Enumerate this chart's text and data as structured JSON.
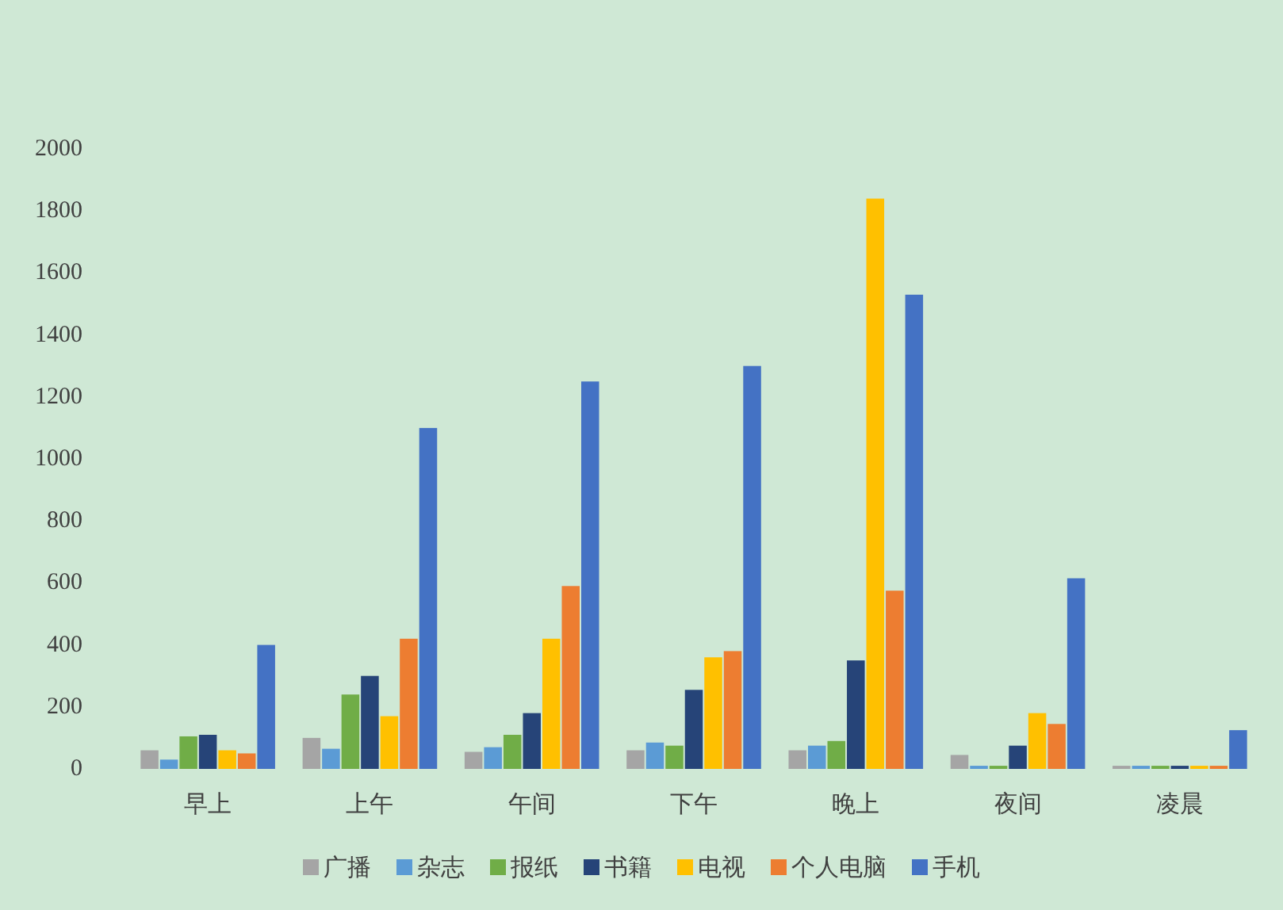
{
  "chart_data": {
    "type": "bar",
    "categories": [
      "早上",
      "上午",
      "午间",
      "下午",
      "晚上",
      "夜间",
      "凌晨"
    ],
    "series": [
      {
        "name": "广播",
        "color": "#a5a5a5",
        "values": [
          60,
          100,
          55,
          60,
          60,
          45,
          10
        ]
      },
      {
        "name": "杂志",
        "color": "#5b9bd5",
        "values": [
          30,
          65,
          70,
          85,
          75,
          10,
          10
        ]
      },
      {
        "name": "报纸",
        "color": "#70ad47",
        "values": [
          105,
          240,
          110,
          75,
          90,
          10,
          10
        ]
      },
      {
        "name": "书籍",
        "color": "#264478",
        "values": [
          110,
          300,
          180,
          255,
          350,
          75,
          10
        ]
      },
      {
        "name": "电视",
        "color": "#ffc000",
        "values": [
          60,
          170,
          420,
          360,
          1840,
          180,
          10
        ]
      },
      {
        "name": "个人电脑",
        "color": "#ed7d31",
        "values": [
          50,
          420,
          590,
          380,
          575,
          145,
          10
        ]
      },
      {
        "name": "手机",
        "color": "#4472c4",
        "values": [
          400,
          1100,
          1250,
          1300,
          1530,
          615,
          125
        ]
      }
    ],
    "ylim": [
      0,
      2000
    ],
    "yticks": [
      0,
      200,
      400,
      600,
      800,
      1000,
      1200,
      1400,
      1600,
      1800,
      2000
    ],
    "legend": "bottom"
  }
}
